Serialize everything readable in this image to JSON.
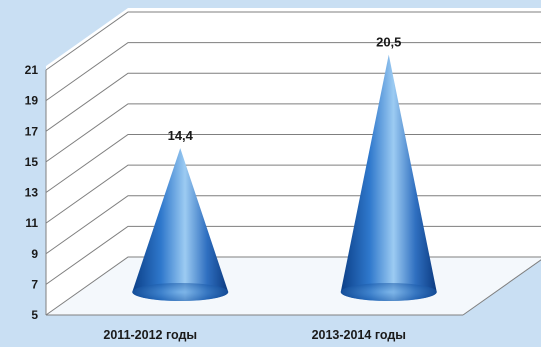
{
  "chart_data": {
    "type": "bar",
    "shape": "cone",
    "categories": [
      "2011-2012 годы",
      "2013-2014 годы"
    ],
    "values": [
      14.4,
      20.5
    ],
    "data_labels": [
      "14,4",
      "20,5"
    ],
    "title": "",
    "xlabel": "",
    "ylabel": "",
    "ylim": [
      5,
      21
    ],
    "yticks": [
      5,
      7,
      9,
      11,
      13,
      15,
      17,
      19,
      21
    ],
    "grid": true,
    "legend": "none",
    "colors": {
      "cone_dark": "#0b3f87",
      "cone_mid": "#2f78cc",
      "cone_light": "#9ccbf2",
      "background": "#c9dff3",
      "wall": "#ffffff",
      "grid": "#7f7f7f"
    }
  }
}
